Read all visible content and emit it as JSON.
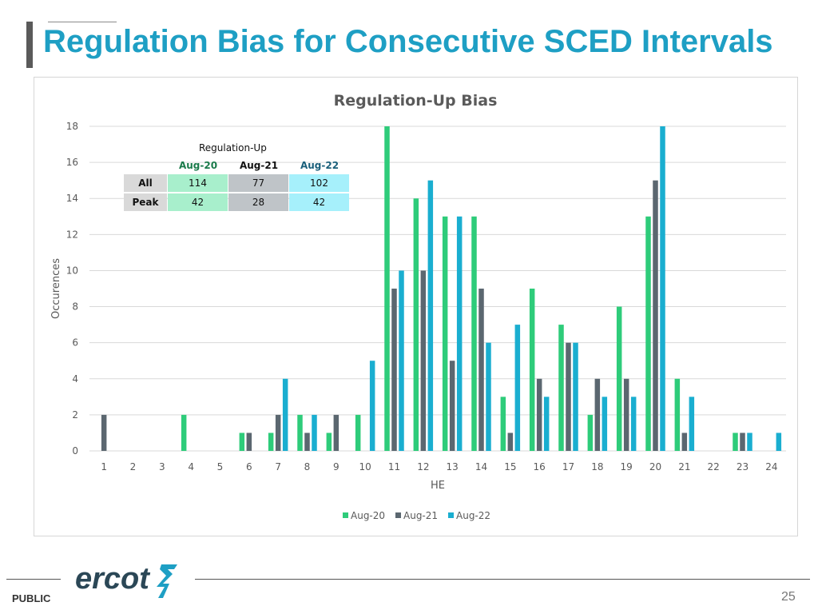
{
  "slide": {
    "title": "Regulation Bias for Consecutive SCED Intervals",
    "footer_label": "PUBLIC",
    "page_number": "25",
    "logo_text": "ercot"
  },
  "colors": {
    "title": "#1e9fc4",
    "aug20": "#2ecc7a",
    "aug21": "#5b6770",
    "aug22": "#1aaed0",
    "aug20_cell": "#a8efcc",
    "aug21_cell": "#bfc4c8",
    "aug22_cell": "#a6f0fb"
  },
  "table": {
    "caption": "Regulation-Up",
    "columns": [
      "Aug-20",
      "Aug-21",
      "Aug-22"
    ],
    "rows": [
      {
        "label": "All",
        "values": [
          "114",
          "77",
          "102"
        ]
      },
      {
        "label": "Peak",
        "values": [
          "42",
          "28",
          "42"
        ]
      }
    ]
  },
  "chart_data": {
    "type": "bar",
    "title": "Regulation-Up Bias",
    "xlabel": "HE",
    "ylabel": "Occurences",
    "ylim": [
      0,
      18
    ],
    "yticks": [
      0,
      2,
      4,
      6,
      8,
      10,
      12,
      14,
      16,
      18
    ],
    "grid": true,
    "legend_position": "bottom",
    "categories": [
      "1",
      "2",
      "3",
      "4",
      "5",
      "6",
      "7",
      "8",
      "9",
      "10",
      "11",
      "12",
      "13",
      "14",
      "15",
      "16",
      "17",
      "18",
      "19",
      "20",
      "21",
      "22",
      "23",
      "24"
    ],
    "series": [
      {
        "name": "Aug-20",
        "values": [
          0,
          0,
          0,
          2,
          0,
          1,
          1,
          2,
          1,
          2,
          18,
          14,
          13,
          13,
          3,
          9,
          7,
          2,
          8,
          13,
          4,
          0,
          1,
          0
        ]
      },
      {
        "name": "Aug-21",
        "values": [
          2,
          0,
          0,
          0,
          0,
          1,
          2,
          1,
          2,
          0,
          9,
          10,
          5,
          9,
          1,
          4,
          6,
          4,
          4,
          15,
          1,
          0,
          1,
          0
        ]
      },
      {
        "name": "Aug-22",
        "values": [
          0,
          0,
          0,
          0,
          0,
          0,
          4,
          2,
          0,
          5,
          10,
          15,
          13,
          6,
          7,
          3,
          6,
          3,
          3,
          18,
          3,
          0,
          1,
          1
        ]
      }
    ]
  }
}
